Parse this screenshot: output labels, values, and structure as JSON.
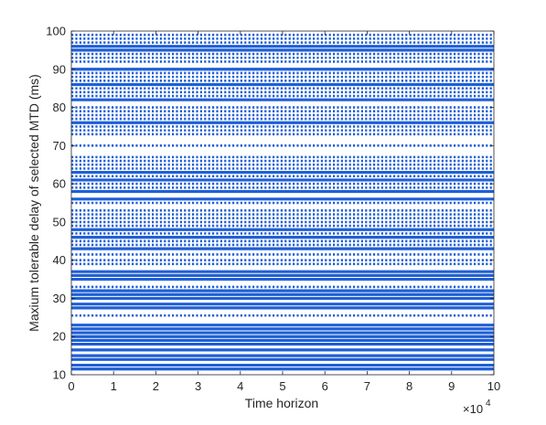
{
  "chart_data": {
    "type": "scatter",
    "title": "",
    "xlabel": "Time horizon",
    "ylabel": "Maxium tolerable delay of selected MTD (ms)",
    "x_exponent_label": "×10",
    "x_exponent_power": "4",
    "xlim": [
      0,
      10
    ],
    "ylim": [
      10,
      100
    ],
    "xticks": [
      "0",
      "1",
      "2",
      "3",
      "4",
      "5",
      "6",
      "7",
      "8",
      "9",
      "10"
    ],
    "yticks": [
      "10",
      "20",
      "30",
      "40",
      "50",
      "60",
      "70",
      "80",
      "90",
      "100"
    ],
    "grid": false,
    "marker_color": "#1f5fd6",
    "series": [
      {
        "levels_continuous": [
          11.5,
          12.5,
          14,
          15,
          16.5,
          18,
          19,
          20,
          21,
          22,
          23,
          27.5,
          28.5,
          30,
          31,
          32,
          35,
          36,
          37,
          43,
          46,
          48,
          56,
          58,
          61,
          63,
          76,
          82,
          86,
          90,
          95,
          96
        ],
        "levels_sparse": [
          25.5,
          33,
          39,
          40,
          41.5,
          44,
          45,
          47,
          49,
          50,
          51,
          52,
          53,
          55,
          59,
          60,
          62,
          64,
          65,
          66,
          67,
          70,
          73,
          74,
          75,
          77,
          78,
          79,
          80,
          83,
          84,
          85,
          87,
          88,
          89,
          92,
          93,
          94,
          97,
          98,
          99
        ],
        "x_range": [
          0,
          10
        ]
      }
    ]
  }
}
